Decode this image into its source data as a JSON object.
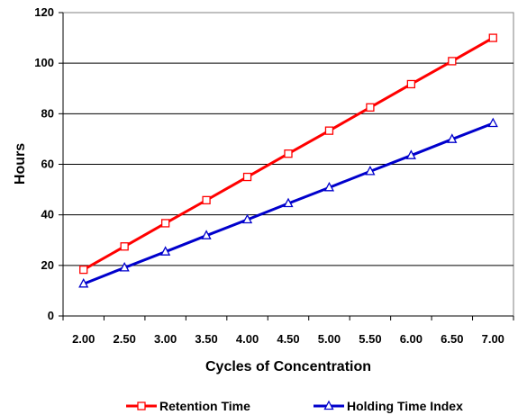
{
  "chart_data": {
    "type": "line",
    "title": "",
    "xlabel": "Cycles of Concentration",
    "ylabel": "Hours",
    "x": [
      "2.00",
      "2.50",
      "3.00",
      "3.50",
      "4.00",
      "4.50",
      "5.00",
      "5.50",
      "6.00",
      "6.50",
      "7.00"
    ],
    "ylim": [
      0,
      120
    ],
    "yticks": [
      "0",
      "20",
      "40",
      "60",
      "80",
      "100",
      "120"
    ],
    "grid": "horizontal",
    "legend_position": "bottom",
    "series": [
      {
        "name": "Retention Time",
        "color": "#ff0000",
        "marker": "square",
        "values": [
          18.3,
          27.5,
          36.7,
          45.8,
          55.0,
          64.2,
          73.3,
          82.5,
          91.7,
          100.8,
          110.0
        ]
      },
      {
        "name": "Holding Time Index",
        "color": "#0000cc",
        "marker": "triangle",
        "values": [
          12.7,
          19.1,
          25.4,
          31.8,
          38.1,
          44.5,
          50.8,
          57.2,
          63.5,
          69.9,
          76.2
        ]
      }
    ]
  }
}
